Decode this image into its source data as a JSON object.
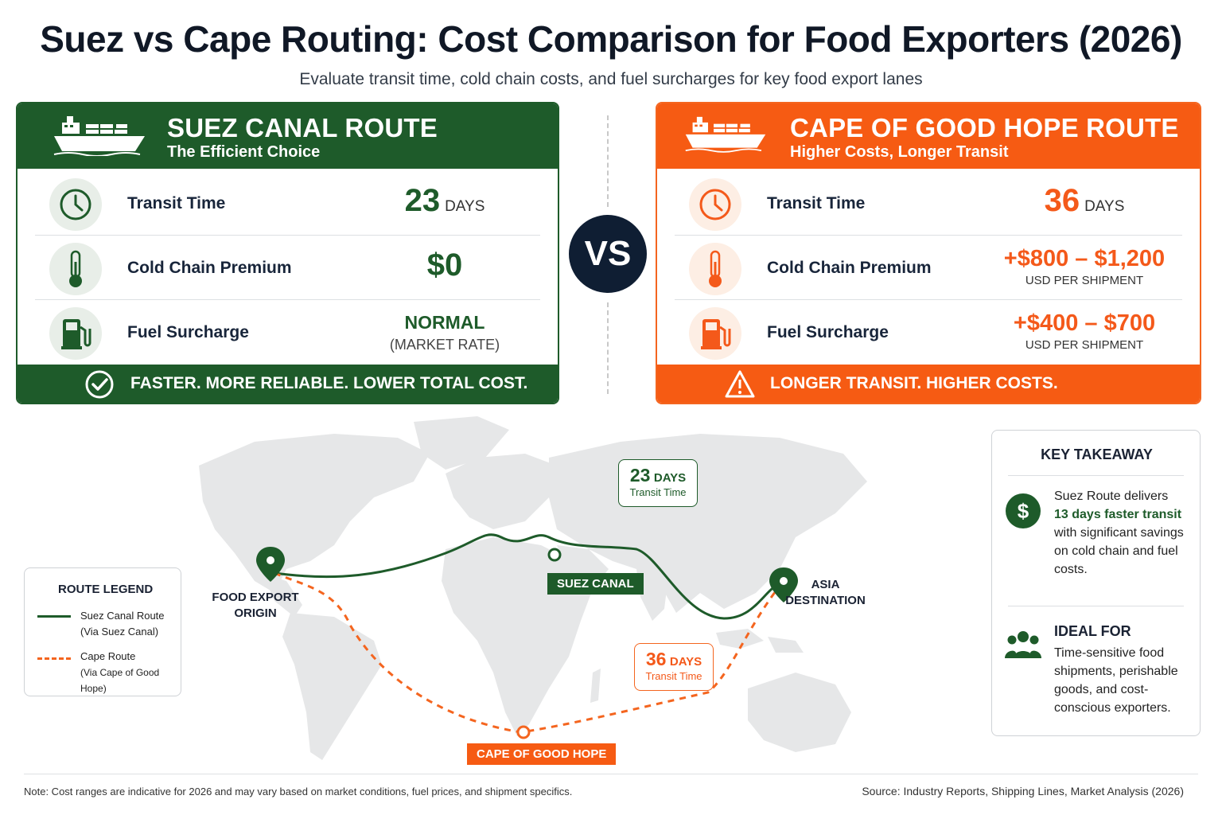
{
  "header": {
    "title": "Suez vs Cape Routing: Cost Comparison for Food Exporters (2026)",
    "subtitle": "Evaluate transit time, cold chain costs, and fuel surcharges for key food export lanes"
  },
  "colors": {
    "suez": "#1e5b2a",
    "cape": "#f65b13",
    "vs": "#0f1e33"
  },
  "suez": {
    "title": "SUEZ CANAL ROUTE",
    "subtitle": "The Efficient Choice",
    "transit_label": "Transit Time",
    "transit_value": "23",
    "transit_unit": "DAYS",
    "cold_label": "Cold Chain Premium",
    "cold_value": "$0",
    "fuel_label": "Fuel Surcharge",
    "fuel_value": "NORMAL",
    "fuel_note": "(MARKET RATE)",
    "footer": "FASTER. MORE RELIABLE. LOWER TOTAL COST."
  },
  "vs_label": "VS",
  "cape": {
    "title": "CAPE OF GOOD HOPE ROUTE",
    "subtitle": "Higher Costs, Longer Transit",
    "transit_label": "Transit Time",
    "transit_value": "36",
    "transit_unit": "DAYS",
    "cold_label": "Cold Chain Premium",
    "cold_value": "+$800 – $1,200",
    "cold_note": "USD PER SHIPMENT",
    "fuel_label": "Fuel Surcharge",
    "fuel_value": "+$400 – $700",
    "fuel_note": "USD PER SHIPMENT",
    "footer": "LONGER TRANSIT. HIGHER COSTS."
  },
  "map": {
    "origin_line1": "FOOD EXPORT",
    "origin_line2": "ORIGIN",
    "destination_line1": "ASIA",
    "destination_line2": "DESTINATION",
    "suez_tag": "SUEZ CANAL",
    "cape_tag": "CAPE OF GOOD HOPE",
    "suez_callout_num": "23",
    "suez_callout_unit": "DAYS",
    "suez_callout_text": "Transit Time",
    "cape_callout_num": "36",
    "cape_callout_unit": "DAYS",
    "cape_callout_text": "Transit Time"
  },
  "legend": {
    "title": "ROUTE LEGEND",
    "suez_name": "Suez Canal Route",
    "suez_sub": "(Via Suez Canal)",
    "cape_name": "Cape Route",
    "cape_sub": "(Via Cape of Good Hope)"
  },
  "takeaway": {
    "title": "KEY TAKEAWAY",
    "line1": "Suez Route delivers",
    "highlight": "13 days faster transit",
    "line2": "with significant savings on cold chain and fuel costs.",
    "ideal_title": "IDEAL FOR",
    "ideal_text": "Time-sensitive food shipments, perishable goods, and cost-conscious exporters."
  },
  "footer": {
    "note": "Note: Cost ranges are indicative for 2026 and may vary based on market conditions, fuel prices, and shipment specifics.",
    "source": "Source: Industry Reports, Shipping Lines, Market Analysis (2026)"
  },
  "icons": [
    "ship-icon",
    "clock-icon",
    "thermometer-icon",
    "fuel-pump-icon",
    "check-circle-icon",
    "warning-icon",
    "map-pin-icon",
    "dollar-icon",
    "people-icon"
  ]
}
